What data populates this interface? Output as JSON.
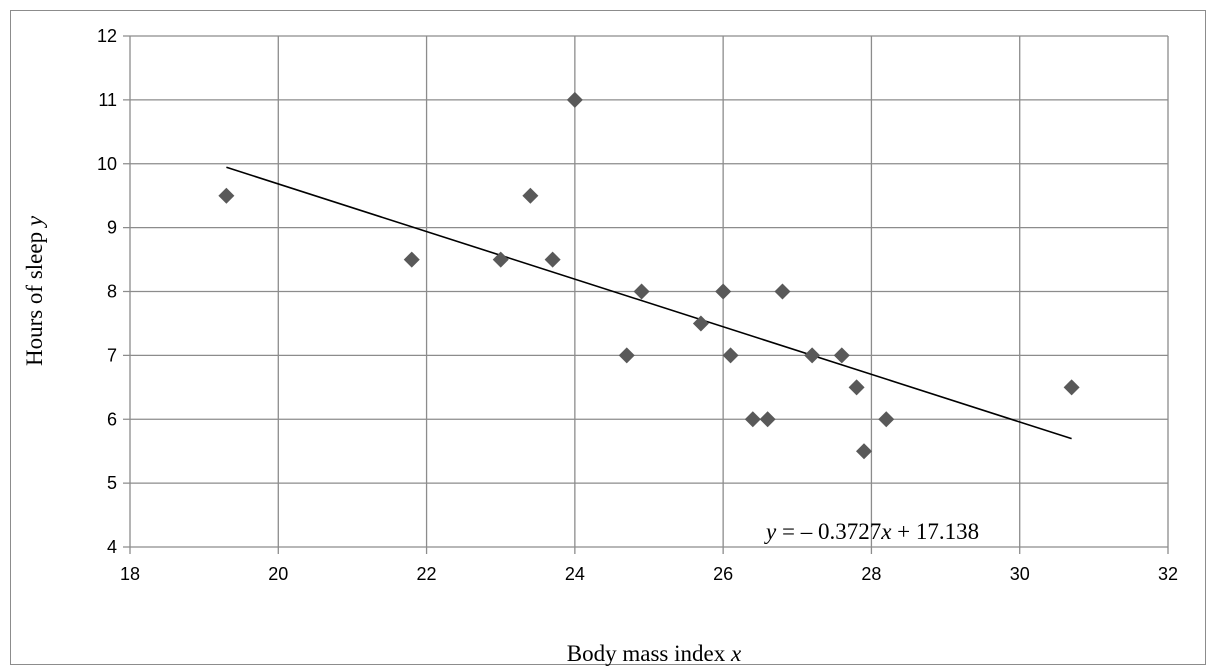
{
  "chart_data": {
    "type": "scatter",
    "title": "",
    "xlabel": {
      "text": "Body mass index ",
      "var": "x"
    },
    "ylabel": {
      "text": "Hours of sleep ",
      "var": "y"
    },
    "xlim": [
      18,
      32
    ],
    "ylim": [
      4,
      12
    ],
    "xticks": [
      "18",
      "20",
      "22",
      "24",
      "26",
      "28",
      "30",
      "32"
    ],
    "yticks": [
      "4",
      "5",
      "6",
      "7",
      "8",
      "9",
      "10",
      "11",
      "12"
    ],
    "grid": true,
    "legend": "none",
    "marker": "diamond",
    "marker_color": "#595959",
    "line_color": "#000000",
    "grid_color": "#8c8c8c",
    "points": [
      {
        "x": 19.3,
        "y": 9.5
      },
      {
        "x": 21.8,
        "y": 8.5
      },
      {
        "x": 23.0,
        "y": 8.5
      },
      {
        "x": 23.4,
        "y": 9.5
      },
      {
        "x": 23.7,
        "y": 8.5
      },
      {
        "x": 24.0,
        "y": 11.0
      },
      {
        "x": 24.7,
        "y": 7.0
      },
      {
        "x": 24.9,
        "y": 8.0
      },
      {
        "x": 25.7,
        "y": 7.5
      },
      {
        "x": 26.0,
        "y": 8.0
      },
      {
        "x": 26.1,
        "y": 7.0
      },
      {
        "x": 26.4,
        "y": 6.0
      },
      {
        "x": 26.6,
        "y": 6.0
      },
      {
        "x": 26.8,
        "y": 8.0
      },
      {
        "x": 27.2,
        "y": 7.0
      },
      {
        "x": 27.6,
        "y": 7.0
      },
      {
        "x": 27.8,
        "y": 6.5
      },
      {
        "x": 27.9,
        "y": 5.5
      },
      {
        "x": 28.2,
        "y": 6.0
      },
      {
        "x": 30.7,
        "y": 6.5
      }
    ],
    "trendline": {
      "type": "linear",
      "slope": -0.3727,
      "intercept": 17.138,
      "x_range": [
        19.3,
        30.7
      ],
      "equation": {
        "lhs": "y",
        "eq": " = ",
        "minus": "–",
        "coef": " 0.3727",
        "var": "x",
        "rest": " + 17.138"
      }
    }
  }
}
